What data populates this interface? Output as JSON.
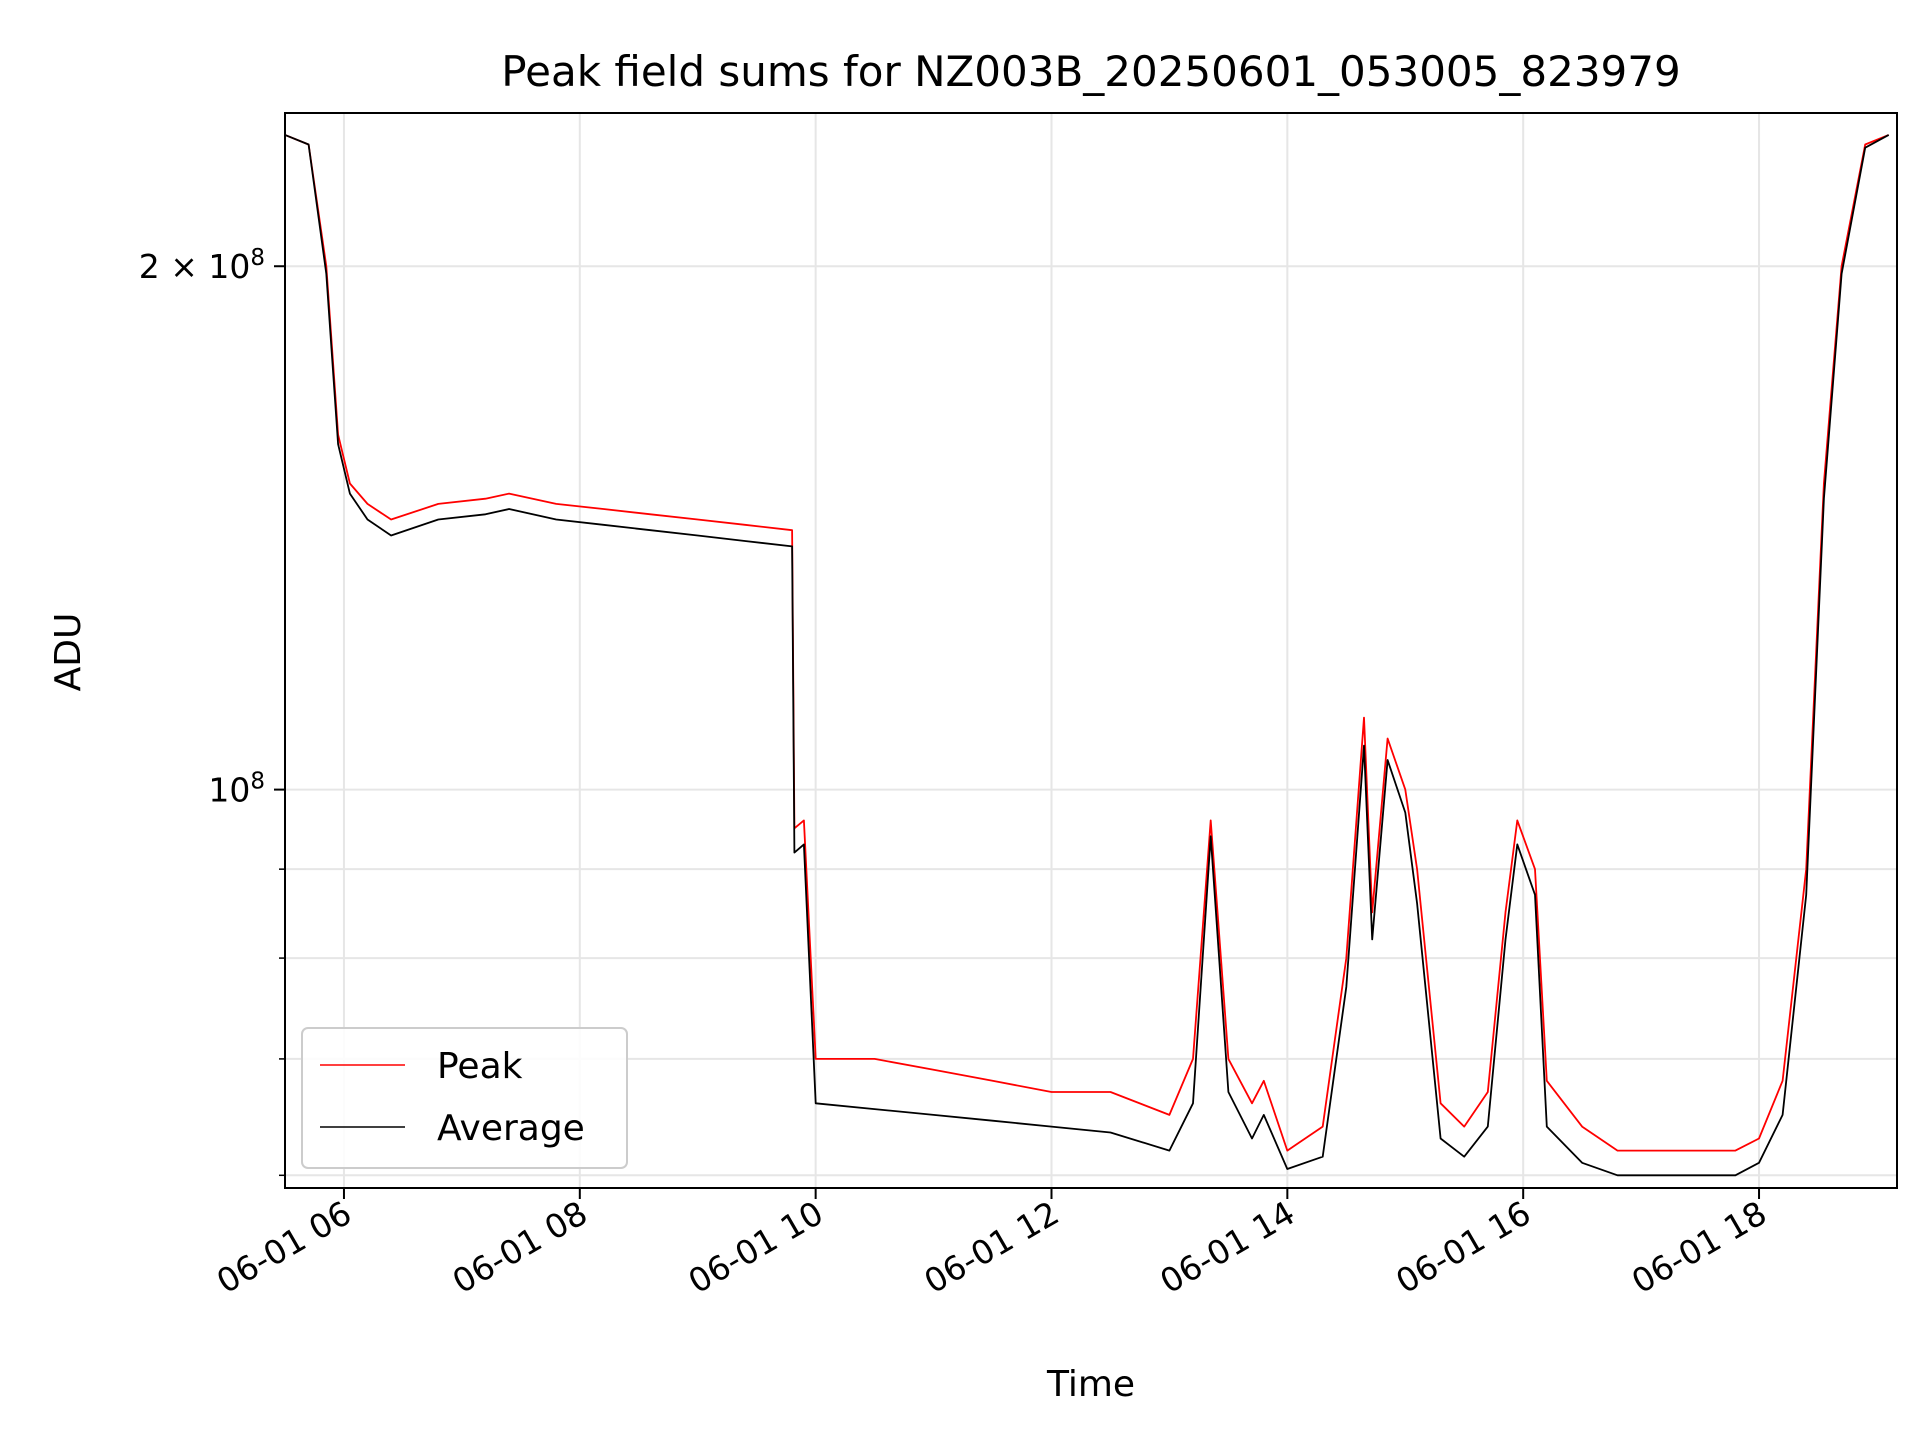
{
  "chart_data": {
    "type": "line",
    "title": "Peak field sums for NZ003B_20250601_053005_823979",
    "xlabel": "Time",
    "ylabel": "ADU",
    "x_tick_labels": [
      "06-01 06",
      "06-01 08",
      "06-01 10",
      "06-01 12",
      "06-01 14",
      "06-01 16",
      "06-01 18"
    ],
    "x_tick_hours": [
      6,
      8,
      10,
      12,
      14,
      16,
      18
    ],
    "y_tick_labels": [
      {
        "value": 100000000,
        "mantissa": "",
        "exponent": "8"
      },
      {
        "value": 200000000,
        "mantissa": "2",
        "exponent": "8"
      }
    ],
    "y_minor_ticks": [
      60000000,
      70000000,
      80000000,
      90000000
    ],
    "xlim": [
      "06-01 05:30",
      "06-01 19:10"
    ],
    "ylim": [
      59000000,
      245000000
    ],
    "y_scale": "log",
    "grid": true,
    "legend_position": "lower-left",
    "series": [
      {
        "name": "Peak",
        "color": "#ff0000",
        "x_hours": [
          5.5,
          5.7,
          5.85,
          5.95,
          6.05,
          6.2,
          6.4,
          6.8,
          7.2,
          7.4,
          7.8,
          8.2,
          8.6,
          9.0,
          9.4,
          9.8,
          9.82,
          9.9,
          10.0,
          10.5,
          11.0,
          11.5,
          12.0,
          12.5,
          13.0,
          13.2,
          13.35,
          13.5,
          13.7,
          13.8,
          14.0,
          14.3,
          14.5,
          14.65,
          14.72,
          14.85,
          15.0,
          15.1,
          15.3,
          15.5,
          15.7,
          15.85,
          15.95,
          16.1,
          16.2,
          16.5,
          16.8,
          17.2,
          17.5,
          17.8,
          18.0,
          18.2,
          18.4,
          18.55,
          18.7,
          18.9,
          19.1
        ],
        "y": [
          238000000,
          235000000,
          200000000,
          160000000,
          150000000,
          146000000,
          143000000,
          146000000,
          147000000,
          148000000,
          146000000,
          145000000,
          144000000,
          143000000,
          142000000,
          141000000,
          95000000,
          96000000,
          70000000,
          70000000,
          69000000,
          68000000,
          67000000,
          67000000,
          65000000,
          70000000,
          96000000,
          70000000,
          66000000,
          68000000,
          62000000,
          64000000,
          80000000,
          110000000,
          85000000,
          107000000,
          100000000,
          90000000,
          66000000,
          64000000,
          67000000,
          85000000,
          96000000,
          90000000,
          68000000,
          64000000,
          62000000,
          62000000,
          62000000,
          62000000,
          63000000,
          68000000,
          90000000,
          150000000,
          200000000,
          235000000,
          238000000
        ]
      },
      {
        "name": "Average",
        "color": "#000000",
        "x_hours": [
          5.5,
          5.7,
          5.85,
          5.95,
          6.05,
          6.2,
          6.4,
          6.8,
          7.2,
          7.4,
          7.8,
          8.2,
          8.6,
          9.0,
          9.4,
          9.8,
          9.82,
          9.9,
          10.0,
          10.5,
          11.0,
          11.5,
          12.0,
          12.5,
          13.0,
          13.2,
          13.35,
          13.5,
          13.7,
          13.8,
          14.0,
          14.3,
          14.5,
          14.65,
          14.72,
          14.85,
          15.0,
          15.1,
          15.3,
          15.5,
          15.7,
          15.85,
          15.95,
          16.1,
          16.2,
          16.5,
          16.8,
          17.2,
          17.5,
          17.8,
          18.0,
          18.2,
          18.4,
          18.55,
          18.7,
          18.9,
          19.1
        ],
        "y": [
          238000000,
          235000000,
          198000000,
          158000000,
          148000000,
          143000000,
          140000000,
          143000000,
          144000000,
          145000000,
          143000000,
          142000000,
          141000000,
          140000000,
          139000000,
          138000000,
          92000000,
          93000000,
          66000000,
          65500000,
          65000000,
          64500000,
          64000000,
          63500000,
          62000000,
          66000000,
          94000000,
          67000000,
          63000000,
          65000000,
          60500000,
          61500000,
          77000000,
          106000000,
          82000000,
          104000000,
          97000000,
          86000000,
          63000000,
          61500000,
          64000000,
          82000000,
          93000000,
          87000000,
          64000000,
          61000000,
          60000000,
          60000000,
          60000000,
          60000000,
          61000000,
          65000000,
          87000000,
          147000000,
          198000000,
          234000000,
          238000000
        ]
      }
    ]
  }
}
